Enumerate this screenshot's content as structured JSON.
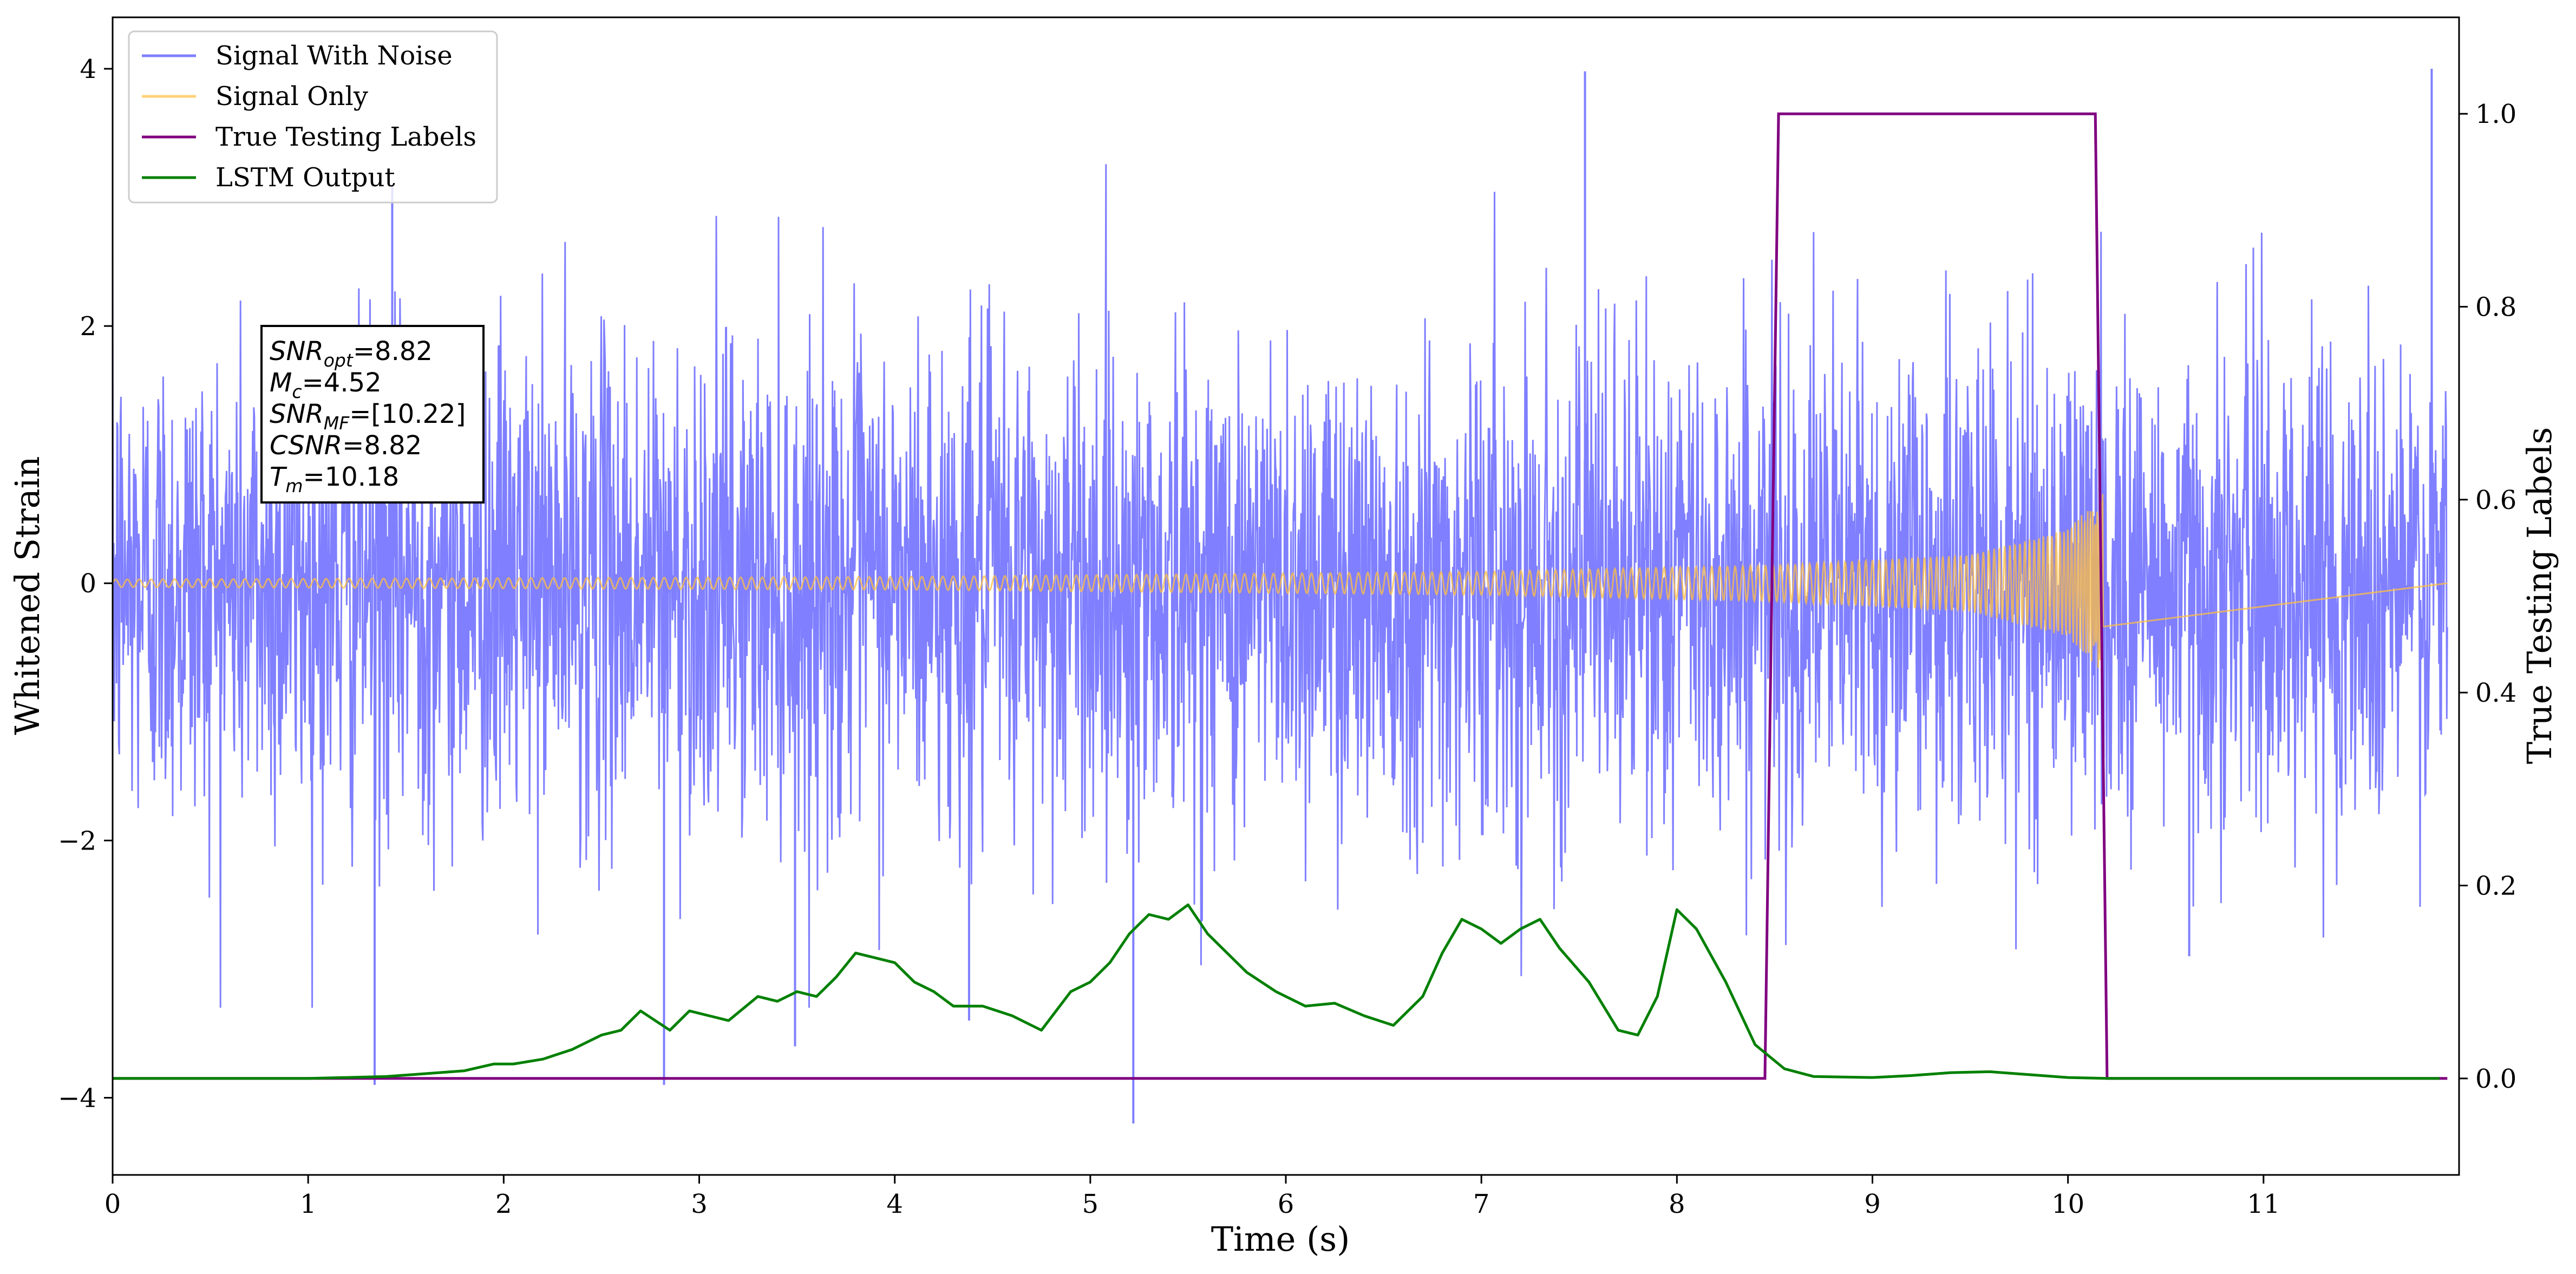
{
  "chart_data": {
    "type": "line",
    "xlabel": "Time (s)",
    "ylabel_left": "Whitened Strain",
    "ylabel_right": "True Testing Labels",
    "xlim": [
      0,
      12.0
    ],
    "ylim_left": [
      -4.6,
      4.4
    ],
    "ylim_right": [
      -0.1,
      1.1
    ],
    "x_ticks": [
      0,
      1,
      2,
      3,
      4,
      5,
      6,
      7,
      8,
      9,
      10,
      11
    ],
    "y_ticks_left": [
      -4,
      -2,
      0,
      2,
      4
    ],
    "y_ticks_right": [
      0.0,
      0.2,
      0.4,
      0.6,
      0.8,
      1.0
    ],
    "x_tick_labels": [
      "0",
      "1",
      "2",
      "3",
      "4",
      "5",
      "6",
      "7",
      "8",
      "9",
      "10",
      "11"
    ],
    "y_tick_labels_left": [
      "−4",
      "−2",
      "0",
      "2",
      "4"
    ],
    "y_tick_labels_right": [
      "0.0",
      "0.2",
      "0.4",
      "0.6",
      "0.8",
      "1.0"
    ],
    "legend_placement": "upper-left",
    "series": [
      {
        "name": "Signal With Noise",
        "color": "#7f7fff",
        "axis": "left",
        "kind": "noise",
        "amplitude_typical": 1.0,
        "min_value": -4.2,
        "max_value": 4.0,
        "spikes": [
          {
            "x": 1.34,
            "y": -3.9
          },
          {
            "x": 1.43,
            "y": 3.1
          },
          {
            "x": 2.82,
            "y": -3.9
          },
          {
            "x": 3.49,
            "y": -3.6
          },
          {
            "x": 5.22,
            "y": -4.2
          },
          {
            "x": 7.53,
            "y": 3.98
          },
          {
            "x": 11.86,
            "y": 4.0
          },
          {
            "x": 4.38,
            "y": -3.4
          },
          {
            "x": 10.62,
            "y": -2.9
          }
        ]
      },
      {
        "name": "Signal Only",
        "color": "#ffbf40",
        "axis": "left",
        "kind": "chirp",
        "merger_time": 10.18,
        "envelope": [
          {
            "x": 0.0,
            "y": 0.03
          },
          {
            "x": 4.0,
            "y": 0.05
          },
          {
            "x": 7.0,
            "y": 0.09
          },
          {
            "x": 8.5,
            "y": 0.14
          },
          {
            "x": 9.5,
            "y": 0.22
          },
          {
            "x": 10.0,
            "y": 0.42
          },
          {
            "x": 10.18,
            "y": 0.7
          }
        ]
      },
      {
        "name": "True Testing Labels",
        "color": "#800080",
        "axis": "right",
        "x": [
          0.0,
          8.45,
          8.52,
          10.14,
          10.2,
          11.94
        ],
        "y": [
          0.0,
          0.0,
          1.0,
          1.0,
          0.0,
          0.0
        ]
      },
      {
        "name": "LSTM Output",
        "color": "#008000",
        "axis": "right",
        "x": [
          0.0,
          1.0,
          1.4,
          1.8,
          1.95,
          2.05,
          2.2,
          2.35,
          2.5,
          2.6,
          2.7,
          2.85,
          2.95,
          3.05,
          3.15,
          3.3,
          3.4,
          3.5,
          3.6,
          3.7,
          3.8,
          3.9,
          4.0,
          4.1,
          4.2,
          4.3,
          4.45,
          4.6,
          4.75,
          4.9,
          5.0,
          5.1,
          5.2,
          5.3,
          5.4,
          5.5,
          5.6,
          5.8,
          5.95,
          6.1,
          6.25,
          6.4,
          6.55,
          6.7,
          6.8,
          6.9,
          7.0,
          7.1,
          7.2,
          7.3,
          7.4,
          7.55,
          7.7,
          7.8,
          7.9,
          8.0,
          8.1,
          8.25,
          8.4,
          8.55,
          8.7,
          9.0,
          9.2,
          9.4,
          9.6,
          9.8,
          10.0,
          10.2,
          10.5,
          11.0,
          11.9
        ],
        "y": [
          0.0,
          0.0,
          0.002,
          0.008,
          0.015,
          0.015,
          0.02,
          0.03,
          0.045,
          0.05,
          0.07,
          0.05,
          0.07,
          0.065,
          0.06,
          0.085,
          0.08,
          0.09,
          0.085,
          0.105,
          0.13,
          0.125,
          0.12,
          0.1,
          0.09,
          0.075,
          0.075,
          0.065,
          0.05,
          0.09,
          0.1,
          0.12,
          0.15,
          0.17,
          0.165,
          0.18,
          0.15,
          0.11,
          0.09,
          0.075,
          0.078,
          0.065,
          0.055,
          0.085,
          0.13,
          0.165,
          0.155,
          0.14,
          0.155,
          0.165,
          0.135,
          0.1,
          0.05,
          0.045,
          0.085,
          0.175,
          0.155,
          0.1,
          0.035,
          0.01,
          0.002,
          0.001,
          0.003,
          0.006,
          0.007,
          0.004,
          0.001,
          0.0,
          0.0,
          0.0,
          0.0
        ]
      }
    ],
    "annotation": {
      "lines": [
        {
          "main": "SNR",
          "sub": "opt",
          "rest": "=8.82"
        },
        {
          "main": "M",
          "sub": "c",
          "rest": "=4.52"
        },
        {
          "main": "SNR",
          "sub": "MF",
          "rest": "=[10.22]"
        },
        {
          "main": "CSNR",
          "sub": "",
          "rest": "=8.82"
        },
        {
          "main": "T",
          "sub": "m",
          "rest": "=10.18"
        }
      ]
    }
  }
}
